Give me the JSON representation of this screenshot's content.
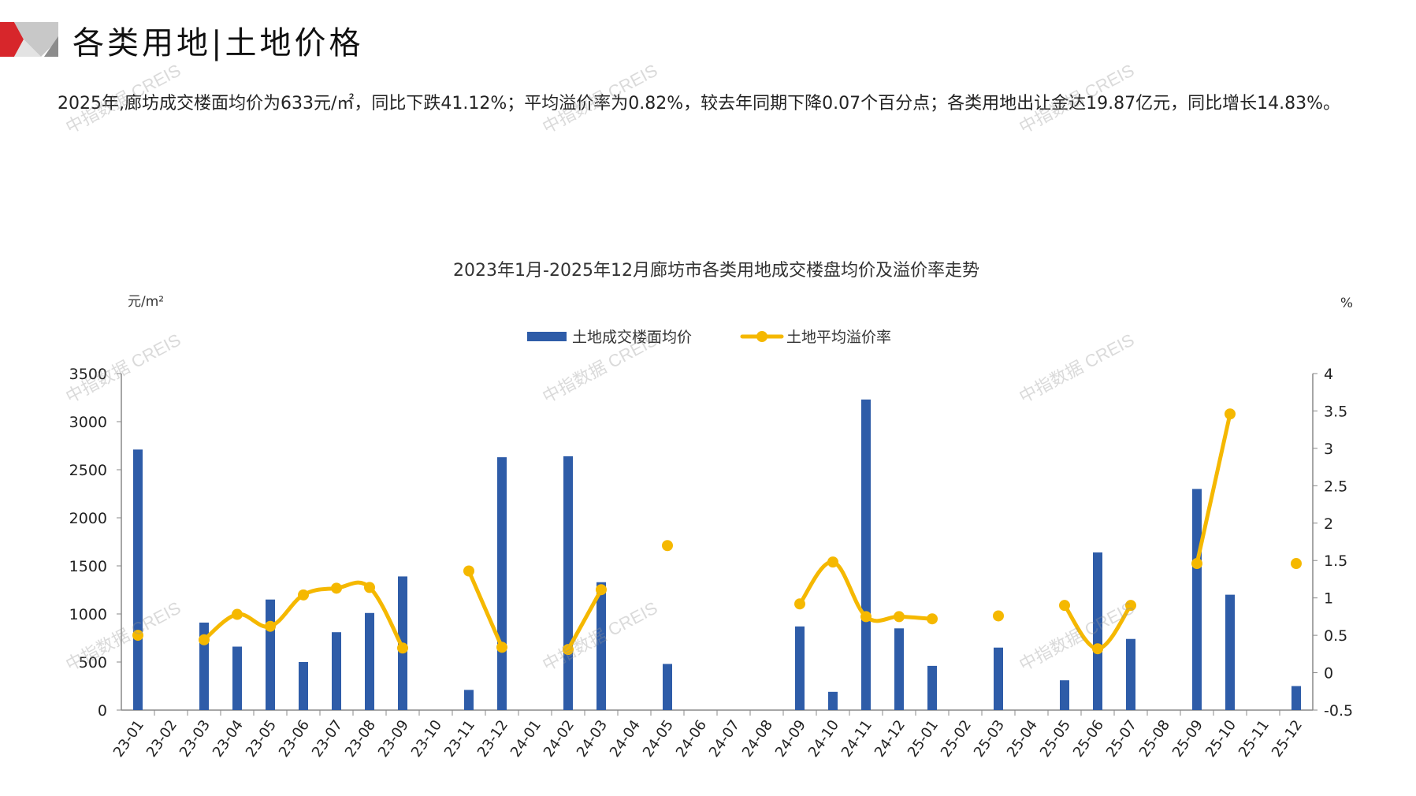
{
  "header": {
    "title": "各类用地|土地价格",
    "summary": "2025年,廊坊成交楼面均价为633元/㎡，同比下跌41.12%；平均溢价率为0.82%，较去年同期下降0.07个百分点；各类用地出让金达19.87亿元，同比增长14.83%。"
  },
  "watermark": "中指数据 CREIS",
  "chart_data": {
    "type": "bar+line",
    "title": "2023年1月-2025年12月廊坊市各类用地成交楼盘均价及溢价率走势",
    "ylabel_left": "元/m²",
    "ylabel_right": "%",
    "ylim_left": [
      0,
      3500
    ],
    "ylim_right": [
      -0.5,
      4
    ],
    "yticks_left": [
      "0",
      "500",
      "1000",
      "1500",
      "2000",
      "2500",
      "3000",
      "3500"
    ],
    "yticks_right": [
      "-0.5",
      "0",
      "0.5",
      "1",
      "1.5",
      "2",
      "2.5",
      "3",
      "3.5",
      "4"
    ],
    "legend_placement": "top-center",
    "grid": false,
    "categories": [
      "23-01",
      "23-02",
      "23-03",
      "23-04",
      "23-05",
      "23-06",
      "23-07",
      "23-08",
      "23-09",
      "23-10",
      "23-11",
      "23-12",
      "24-01",
      "24-02",
      "24-03",
      "24-04",
      "24-05",
      "24-06",
      "24-07",
      "24-08",
      "24-09",
      "24-10",
      "24-11",
      "24-12",
      "25-01",
      "25-02",
      "25-03",
      "25-04",
      "25-05",
      "25-06",
      "25-07",
      "25-08",
      "25-09",
      "25-10",
      "25-11",
      "25-12"
    ],
    "series": [
      {
        "name": "土地成交楼面均价",
        "type": "bar",
        "axis": "left",
        "color": "#2e5ca8",
        "values": [
          2710,
          null,
          910,
          660,
          1150,
          500,
          810,
          1010,
          1390,
          null,
          210,
          2630,
          null,
          2640,
          1330,
          null,
          480,
          null,
          null,
          null,
          870,
          190,
          3230,
          850,
          460,
          null,
          650,
          null,
          310,
          1640,
          740,
          null,
          2300,
          1200,
          null,
          250
        ]
      },
      {
        "name": "土地平均溢价率",
        "type": "line",
        "axis": "right",
        "color": "#f5b800",
        "values": [
          0.5,
          null,
          0.44,
          0.78,
          0.62,
          1.04,
          1.13,
          1.14,
          0.33,
          null,
          1.36,
          0.34,
          null,
          0.31,
          1.11,
          null,
          1.7,
          null,
          null,
          null,
          0.92,
          1.48,
          0.75,
          0.75,
          0.72,
          null,
          0.76,
          null,
          0.9,
          0.32,
          0.9,
          null,
          1.46,
          3.46,
          null,
          1.46
        ]
      }
    ]
  }
}
